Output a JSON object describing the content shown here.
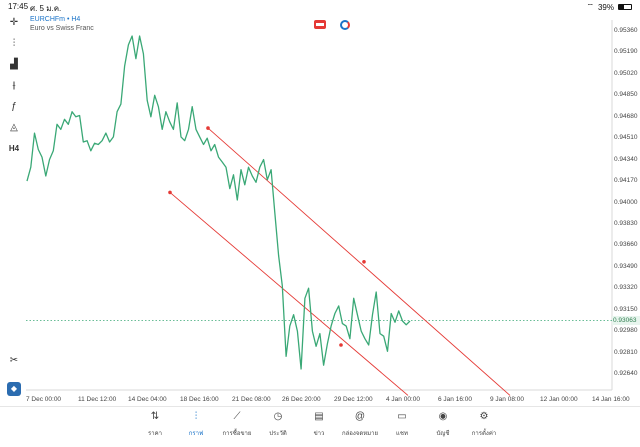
{
  "status": {
    "time": "17:45",
    "date": "ศ. 5 ม.ค.",
    "battery": "39%"
  },
  "header": {
    "symbol": "EURCHFm • H4",
    "description": "Euro vs Swiss Franc"
  },
  "toolbar": {
    "timeframe": "H4",
    "icons": [
      "crosshair-icon",
      "candlestick-icon",
      "bar-chart-icon",
      "indicators-icon",
      "function-icon",
      "shapes-icon",
      "timeframe-label",
      "scissors-icon",
      "app-icon"
    ]
  },
  "price_axis": [
    "0.95360",
    "0.95190",
    "0.95020",
    "0.94850",
    "0.94680",
    "0.94510",
    "0.94340",
    "0.94170",
    "0.94000",
    "0.93830",
    "0.93660",
    "0.93490",
    "0.93320",
    "0.93150",
    "0.92980",
    "0.92810",
    "0.92640"
  ],
  "current_price": "0.93063",
  "date_axis": [
    "7 Dec 00:00",
    "11 Dec 12:00",
    "14 Dec 04:00",
    "18 Dec 16:00",
    "21 Dec 08:00",
    "26 Dec 20:00",
    "29 Dec 12:00",
    "4 Jan 00:00",
    "6 Jan 16:00",
    "9 Jan 08:00",
    "12 Jan 00:00",
    "14 Jan 16:00"
  ],
  "nav": [
    {
      "label": "ราคา",
      "icon": "quotes-icon"
    },
    {
      "label": "กราฟ",
      "icon": "chart-icon"
    },
    {
      "label": "การซื้อขาย",
      "icon": "trade-icon"
    },
    {
      "label": "ประวัติ",
      "icon": "history-icon"
    },
    {
      "label": "ข่าว",
      "icon": "news-icon"
    },
    {
      "label": "กล่องจดหมาย",
      "icon": "mailbox-icon"
    },
    {
      "label": "แชท",
      "icon": "chat-icon"
    },
    {
      "label": "บัญชี",
      "icon": "account-icon"
    },
    {
      "label": "การตั้งค่า",
      "icon": "settings-icon"
    }
  ],
  "nav_active": "กราฟ",
  "colors": {
    "line": "#3aa876",
    "channel": "#e53935",
    "price_line": "#3aa876",
    "accent": "#1a73c8"
  },
  "chart_data": {
    "type": "line",
    "symbol": "EURCHFm",
    "timeframe": "H4",
    "ylim": [
      0.9258,
      0.9542
    ],
    "y_ticks": [
      0.9536,
      0.9519,
      0.9502,
      0.9485,
      0.9468,
      0.9451,
      0.9434,
      0.9417,
      0.94,
      0.9383,
      0.9366,
      0.9349,
      0.9332,
      0.9315,
      0.9298,
      0.9281,
      0.9264
    ],
    "series": [
      {
        "values": [
          0.9417,
          0.9428,
          0.9455,
          0.9442,
          0.9436,
          0.9421,
          0.9434,
          0.9441,
          0.9462,
          0.9458,
          0.9466,
          0.9462,
          0.9472,
          0.9468,
          0.9469,
          0.9448,
          0.9449,
          0.9441,
          0.9447,
          0.9446,
          0.9449,
          0.9455,
          0.9448,
          0.9452,
          0.9472,
          0.9478,
          0.9508,
          0.9525,
          0.9532,
          0.9514,
          0.9532,
          0.9518,
          0.9481,
          0.9468,
          0.9485,
          0.9476,
          0.9458,
          0.9472,
          0.9464,
          0.9458,
          0.9479,
          0.9452,
          0.9449,
          0.9458,
          0.9476,
          0.9458,
          0.9452,
          0.9446,
          0.9451,
          0.9441,
          0.9446,
          0.9436,
          0.9432,
          0.9428,
          0.9411,
          0.9422,
          0.9402,
          0.9426,
          0.9414,
          0.9428,
          0.9421,
          0.9416,
          0.9428,
          0.9434,
          0.9418,
          0.9426,
          0.9392,
          0.9358,
          0.9334,
          0.9278,
          0.9302,
          0.9311,
          0.9298,
          0.9268,
          0.9324,
          0.9332,
          0.9298,
          0.9286,
          0.9296,
          0.9271,
          0.9288,
          0.9302,
          0.9312,
          0.9318,
          0.9304,
          0.9302,
          0.9292,
          0.9324,
          0.9311,
          0.9298,
          0.9292,
          0.9287,
          0.9311,
          0.9329,
          0.9296,
          0.9294,
          0.9282,
          0.9312,
          0.9305,
          0.9314,
          0.9306,
          0.9303,
          0.9306
        ]
      }
    ],
    "channel": [
      {
        "start": {
          "x_date": "19 Dec 04:00",
          "y": 0.9459
        },
        "end": {
          "x_date": "8 Jan 16:00",
          "y": 0.9247
        }
      },
      {
        "start": {
          "x_date": "15 Dec 00:00",
          "y": 0.9408
        },
        "end": {
          "x_date": "4 Jan 04:00",
          "y": 0.9247
        }
      }
    ],
    "channel_mid_markers": [
      {
        "x_date": "29 Dec 00:00",
        "y": 0.9353
      },
      {
        "x_date": "28 Dec 04:00",
        "y": 0.9287
      }
    ]
  }
}
